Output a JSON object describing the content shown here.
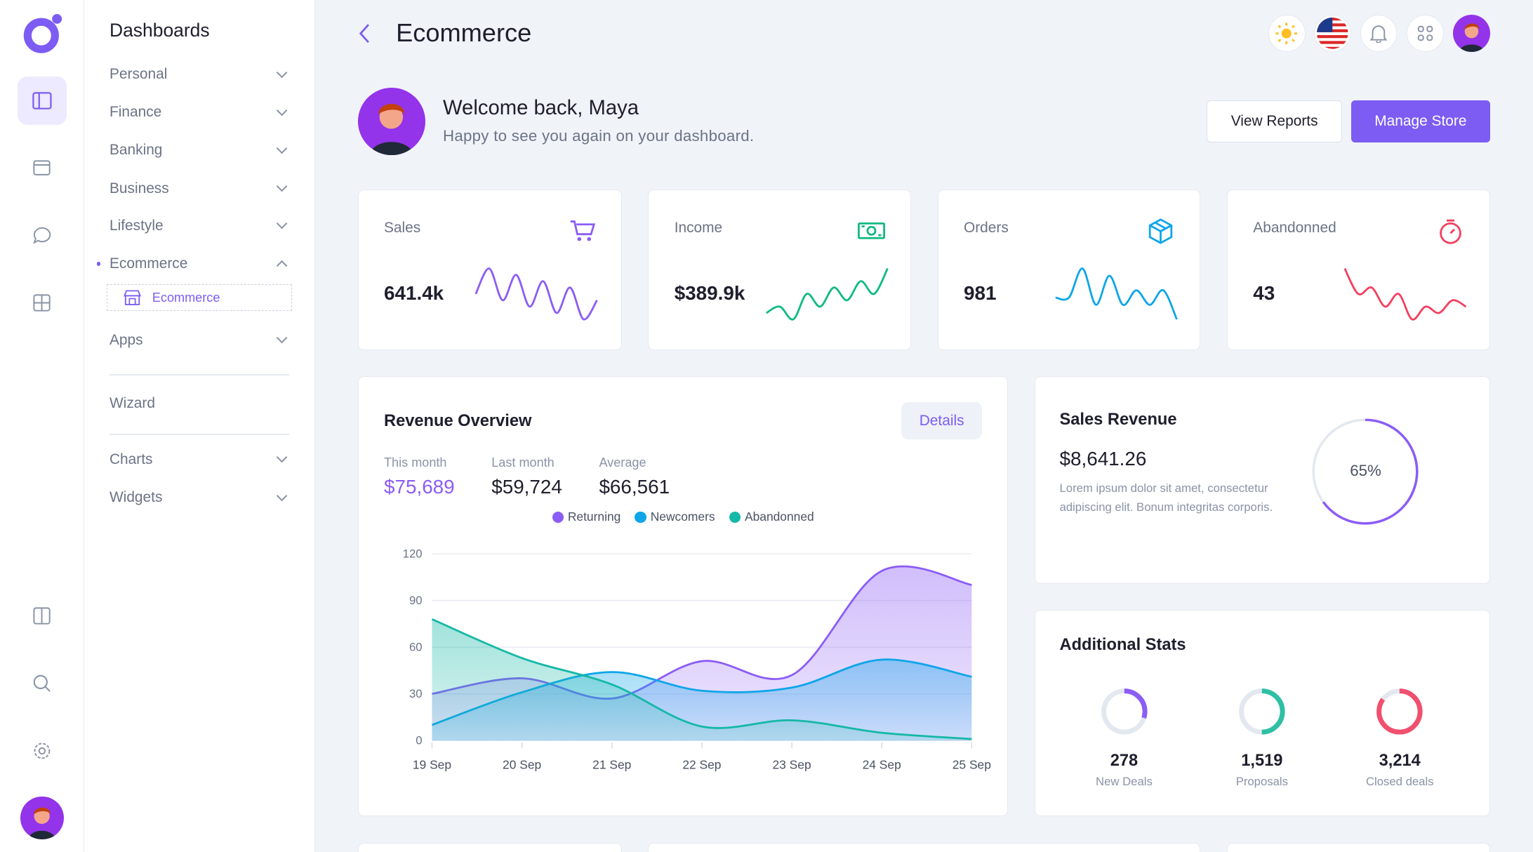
{
  "header": {
    "title": "Ecommerce",
    "icons": [
      "sun-icon",
      "us-flag-icon",
      "bell-icon",
      "apps-grid-icon",
      "user-avatar"
    ]
  },
  "sidebar": {
    "heading": "Dashboards",
    "items": [
      {
        "label": "Personal",
        "expanded": false
      },
      {
        "label": "Finance",
        "expanded": false
      },
      {
        "label": "Banking",
        "expanded": false
      },
      {
        "label": "Business",
        "expanded": false
      },
      {
        "label": "Lifestyle",
        "expanded": false
      },
      {
        "label": "Ecommerce",
        "expanded": true,
        "active": true
      }
    ],
    "sub_item": "Ecommerce",
    "apps": "Apps",
    "wizard": "Wizard",
    "charts": "Charts",
    "widgets": "Widgets"
  },
  "welcome": {
    "title": "Welcome back, Maya",
    "subtitle": "Happy to see you again on your dashboard.",
    "view_reports": "View Reports",
    "manage_store": "Manage Store"
  },
  "kpis": [
    {
      "label": "Sales",
      "value": "641.4k",
      "icon": "cart-icon",
      "color": "#8b5cf6",
      "spark": [
        5,
        9,
        4,
        8,
        3,
        7,
        2,
        6,
        1,
        4
      ]
    },
    {
      "label": "Income",
      "value": "$389.9k",
      "icon": "cash-icon",
      "color": "#10b981",
      "spark": [
        2,
        3,
        1,
        5,
        3,
        6,
        4,
        7,
        5,
        9
      ]
    },
    {
      "label": "Orders",
      "value": "981",
      "icon": "box-icon",
      "color": "#0ea5e9",
      "spark": [
        4,
        4,
        8,
        3,
        7,
        3,
        5,
        3,
        5,
        1
      ]
    },
    {
      "label": "Abandonned",
      "value": "43",
      "icon": "timer-icon",
      "color": "#f43f5e",
      "spark": [
        9,
        5,
        6,
        3,
        5,
        1,
        3,
        2,
        4,
        3
      ]
    }
  ],
  "revenue": {
    "title": "Revenue Overview",
    "details": "Details",
    "stats": [
      {
        "label": "This month",
        "value": "$75,689"
      },
      {
        "label": "Last month",
        "value": "$59,724"
      },
      {
        "label": "Average",
        "value": "$66,561"
      }
    ]
  },
  "chart_data": {
    "type": "area",
    "categories": [
      "19 Sep",
      "20 Sep",
      "21 Sep",
      "22 Sep",
      "23 Sep",
      "24 Sep",
      "25 Sep"
    ],
    "yticks": [
      "0",
      "30",
      "60",
      "90",
      "120"
    ],
    "ylim": [
      0,
      120
    ],
    "grid": true,
    "legend": "top-center",
    "series": [
      {
        "name": "Returning",
        "color": "#8b5cf6",
        "values": [
          30,
          40,
          27,
          51,
          42,
          109,
          100
        ]
      },
      {
        "name": "Newcomers",
        "color": "#0ea5e9",
        "values": [
          10,
          31,
          44,
          32,
          34,
          52,
          41
        ]
      },
      {
        "name": "Abandonned",
        "color": "#14b8a6",
        "values": [
          78,
          53,
          36,
          9,
          13,
          5,
          1
        ]
      }
    ]
  },
  "sales_revenue": {
    "title": "Sales Revenue",
    "value": "$8,641.26",
    "text": "Lorem ipsum dolor sit amet, consectetur adipiscing elit. Bonum integritas corporis.",
    "percent_label": "65%",
    "percent": 65,
    "color": "#8b5cf6"
  },
  "additional": {
    "title": "Additional Stats",
    "items": [
      {
        "value": "278",
        "label": "New Deals",
        "percent": 30,
        "color": "#8b5cf6"
      },
      {
        "value": "1,519",
        "label": "Proposals",
        "percent": 50,
        "color": "#2ebfa5"
      },
      {
        "value": "3,214",
        "label": "Closed deals",
        "percent": 85,
        "color": "#f0506e"
      }
    ]
  }
}
